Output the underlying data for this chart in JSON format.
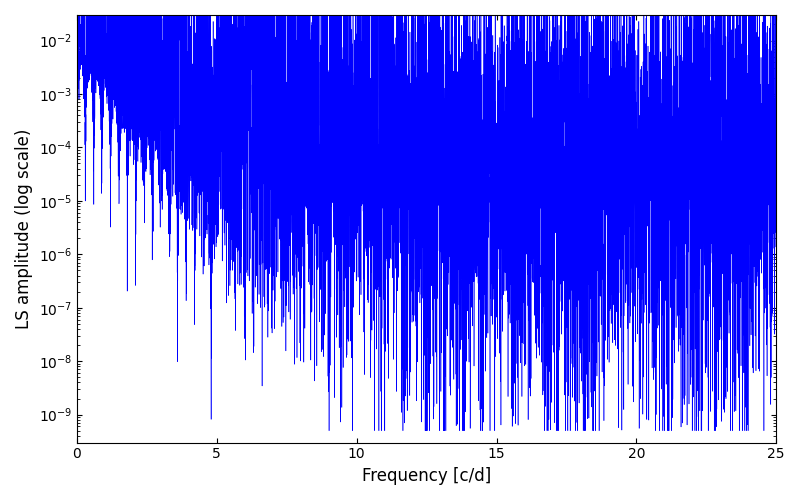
{
  "xlabel": "Frequency [c/d]",
  "ylabel": "LS amplitude (log scale)",
  "xlim": [
    0,
    25
  ],
  "ylim": [
    3e-10,
    0.03
  ],
  "line_color": "#0000ff",
  "line_width": 0.4,
  "figsize": [
    8.0,
    5.0
  ],
  "dpi": 100,
  "n_points": 8000,
  "freq_max": 25.0,
  "seed": 42
}
